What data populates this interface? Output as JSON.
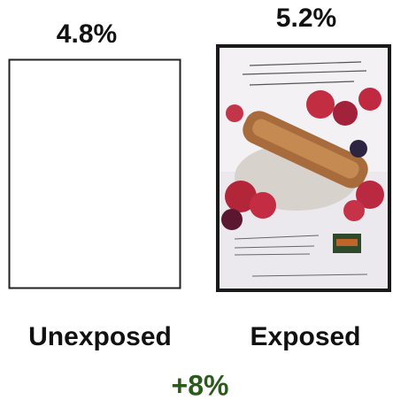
{
  "panels": [
    {
      "value_label": "4.8%",
      "label": "Unexposed"
    },
    {
      "value_label": "5.2%",
      "label": "Exposed"
    }
  ],
  "lift": "+8%"
}
